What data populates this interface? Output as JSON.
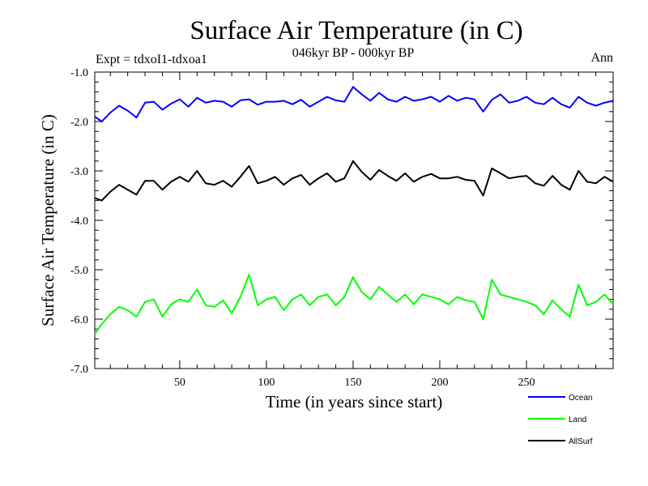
{
  "chart_data": {
    "type": "line",
    "title": "Surface Air Temperature (in C)",
    "subtitle": "046kyr BP - 000kyr BP",
    "experiment_label": "Expt = tdxoI1-tdxoa1",
    "season_label": "Ann",
    "xlabel": "Time (in years since start)",
    "ylabel": "Surface Air Temperature (in C)",
    "xlim": [
      1,
      300
    ],
    "ylim": [
      -7.0,
      -1.0
    ],
    "xticks": [
      50,
      100,
      150,
      200,
      250
    ],
    "xtick_labels": [
      "50",
      "100",
      "150",
      "200",
      "250"
    ],
    "yticks": [
      -7.0,
      -6.0,
      -5.0,
      -4.0,
      -3.0,
      -2.0,
      -1.0
    ],
    "ytick_labels": [
      "-7.0",
      "-6.0",
      "-5.0",
      "-4.0",
      "-3.0",
      "-2.0",
      "-1.0"
    ],
    "legend_position": "bottom-right, below plot",
    "series": [
      {
        "name": "Ocean",
        "color": "#0000ff",
        "x": [
          1,
          5,
          10,
          15,
          20,
          25,
          30,
          35,
          40,
          45,
          50,
          55,
          60,
          65,
          70,
          75,
          80,
          85,
          90,
          95,
          100,
          105,
          110,
          115,
          120,
          125,
          130,
          135,
          140,
          145,
          150,
          155,
          160,
          165,
          170,
          175,
          180,
          185,
          190,
          195,
          200,
          205,
          210,
          215,
          220,
          225,
          230,
          235,
          240,
          245,
          250,
          255,
          260,
          265,
          270,
          275,
          280,
          285,
          290,
          295,
          300
        ],
        "values": [
          -1.9,
          -2.0,
          -1.82,
          -1.68,
          -1.78,
          -1.92,
          -1.62,
          -1.6,
          -1.76,
          -1.64,
          -1.55,
          -1.7,
          -1.52,
          -1.62,
          -1.58,
          -1.6,
          -1.7,
          -1.57,
          -1.55,
          -1.66,
          -1.6,
          -1.6,
          -1.58,
          -1.65,
          -1.56,
          -1.7,
          -1.6,
          -1.5,
          -1.57,
          -1.6,
          -1.3,
          -1.45,
          -1.58,
          -1.42,
          -1.55,
          -1.6,
          -1.5,
          -1.58,
          -1.55,
          -1.5,
          -1.6,
          -1.48,
          -1.58,
          -1.52,
          -1.55,
          -1.8,
          -1.56,
          -1.45,
          -1.62,
          -1.58,
          -1.5,
          -1.62,
          -1.65,
          -1.52,
          -1.65,
          -1.72,
          -1.5,
          -1.62,
          -1.68,
          -1.62,
          -1.58
        ]
      },
      {
        "name": "Land",
        "color": "#00ff00",
        "x": [
          1,
          5,
          10,
          15,
          20,
          25,
          30,
          35,
          40,
          45,
          50,
          55,
          60,
          65,
          70,
          75,
          80,
          85,
          90,
          95,
          100,
          105,
          110,
          115,
          120,
          125,
          130,
          135,
          140,
          145,
          150,
          155,
          160,
          165,
          170,
          175,
          180,
          185,
          190,
          195,
          200,
          205,
          210,
          215,
          220,
          225,
          230,
          235,
          240,
          245,
          250,
          255,
          260,
          265,
          270,
          275,
          280,
          285,
          290,
          295,
          300
        ],
        "values": [
          -6.3,
          -6.1,
          -5.9,
          -5.75,
          -5.82,
          -5.95,
          -5.65,
          -5.6,
          -5.95,
          -5.7,
          -5.6,
          -5.65,
          -5.4,
          -5.72,
          -5.75,
          -5.62,
          -5.88,
          -5.55,
          -5.1,
          -5.72,
          -5.6,
          -5.55,
          -5.82,
          -5.6,
          -5.5,
          -5.72,
          -5.55,
          -5.5,
          -5.72,
          -5.55,
          -5.15,
          -5.45,
          -5.6,
          -5.35,
          -5.5,
          -5.65,
          -5.5,
          -5.7,
          -5.5,
          -5.55,
          -5.6,
          -5.7,
          -5.55,
          -5.62,
          -5.65,
          -6.0,
          -5.2,
          -5.5,
          -5.55,
          -5.6,
          -5.65,
          -5.72,
          -5.9,
          -5.62,
          -5.8,
          -5.95,
          -5.3,
          -5.72,
          -5.65,
          -5.5,
          -5.7
        ]
      },
      {
        "name": "AllSurf",
        "color": "#000000",
        "x": [
          1,
          5,
          10,
          15,
          20,
          25,
          30,
          35,
          40,
          45,
          50,
          55,
          60,
          65,
          70,
          75,
          80,
          85,
          90,
          95,
          100,
          105,
          110,
          115,
          120,
          125,
          130,
          135,
          140,
          145,
          150,
          155,
          160,
          165,
          170,
          175,
          180,
          185,
          190,
          195,
          200,
          205,
          210,
          215,
          220,
          225,
          230,
          235,
          240,
          245,
          250,
          255,
          260,
          265,
          270,
          275,
          280,
          285,
          290,
          295,
          300
        ],
        "values": [
          -3.55,
          -3.6,
          -3.42,
          -3.28,
          -3.38,
          -3.48,
          -3.2,
          -3.2,
          -3.38,
          -3.22,
          -3.12,
          -3.22,
          -3.0,
          -3.25,
          -3.28,
          -3.2,
          -3.32,
          -3.12,
          -2.9,
          -3.25,
          -3.2,
          -3.12,
          -3.28,
          -3.15,
          -3.08,
          -3.28,
          -3.15,
          -3.05,
          -3.22,
          -3.15,
          -2.8,
          -3.02,
          -3.18,
          -2.98,
          -3.1,
          -3.2,
          -3.05,
          -3.22,
          -3.12,
          -3.06,
          -3.15,
          -3.15,
          -3.12,
          -3.18,
          -3.2,
          -3.5,
          -2.95,
          -3.05,
          -3.15,
          -3.12,
          -3.1,
          -3.25,
          -3.3,
          -3.1,
          -3.28,
          -3.38,
          -3.0,
          -3.22,
          -3.25,
          -3.12,
          -3.22
        ]
      }
    ],
    "legend": [
      {
        "name": "Ocean",
        "color": "#0000ff"
      },
      {
        "name": "Land",
        "color": "#00ff00"
      },
      {
        "name": "AllSurf",
        "color": "#000000"
      }
    ]
  }
}
